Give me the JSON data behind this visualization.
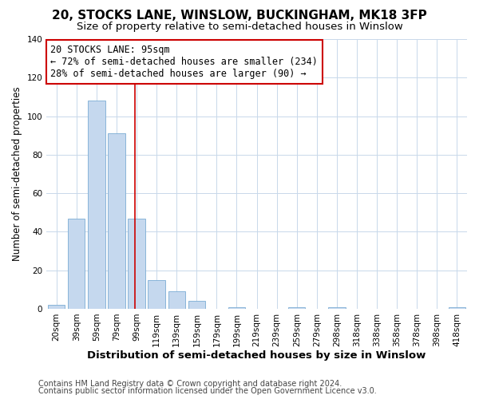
{
  "title": "20, STOCKS LANE, WINSLOW, BUCKINGHAM, MK18 3FP",
  "subtitle": "Size of property relative to semi-detached houses in Winslow",
  "xlabel": "Distribution of semi-detached houses by size in Winslow",
  "ylabel": "Number of semi-detached properties",
  "footnote1": "Contains HM Land Registry data © Crown copyright and database right 2024.",
  "footnote2": "Contains public sector information licensed under the Open Government Licence v3.0.",
  "annotation_title": "20 STOCKS LANE: 95sqm",
  "annotation_line1": "← 72% of semi-detached houses are smaller (234)",
  "annotation_line2": "28% of semi-detached houses are larger (90) →",
  "bin_labels": [
    "20sqm",
    "39sqm",
    "59sqm",
    "79sqm",
    "99sqm",
    "119sqm",
    "139sqm",
    "159sqm",
    "179sqm",
    "199sqm",
    "219sqm",
    "239sqm",
    "259sqm",
    "279sqm",
    "298sqm",
    "318sqm",
    "338sqm",
    "358sqm",
    "378sqm",
    "398sqm",
    "418sqm"
  ],
  "counts": [
    2,
    47,
    108,
    91,
    47,
    15,
    9,
    4,
    0,
    1,
    0,
    0,
    1,
    0,
    1,
    0,
    0,
    0,
    0,
    0,
    1
  ],
  "bar_color": "#c5d8ee",
  "bar_edge_color": "#7bacd4",
  "vline_color": "#cc0000",
  "vline_pos": 3.9,
  "annotation_box_edge": "#cc0000",
  "ylim": [
    0,
    140
  ],
  "yticks": [
    0,
    20,
    40,
    60,
    80,
    100,
    120,
    140
  ],
  "background_color": "#ffffff",
  "grid_color": "#c8d8ea",
  "title_fontsize": 11,
  "subtitle_fontsize": 9.5,
  "xlabel_fontsize": 9.5,
  "ylabel_fontsize": 8.5,
  "tick_fontsize": 7.5,
  "annotation_fontsize": 8.5,
  "footnote_fontsize": 7
}
